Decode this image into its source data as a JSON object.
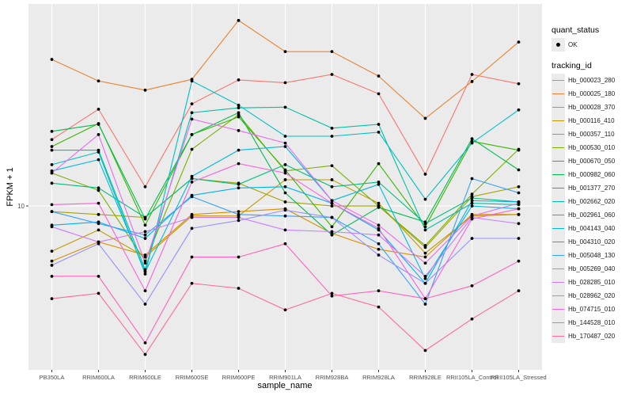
{
  "chart_data": {
    "type": "line",
    "title": "",
    "xlabel": "sample_name",
    "ylabel": "FPKM + 1",
    "y_scale": "log10",
    "ylim": [
      3.04,
      43.4
    ],
    "y_ticks": [
      10
    ],
    "y_tick_labels": [
      "10"
    ],
    "grid": true,
    "legend_position": "right",
    "categories": [
      "PB350LA",
      "RRIM600LA",
      "RRIM600LE",
      "RRIM600SE",
      "RRIM600PE",
      "RRIM901LA",
      "RRIM928BA",
      "RRIM928LA",
      "RRIM928LE",
      "RRII105LA_Control",
      "RRII105LA_Stressed"
    ],
    "quant_status_legend": {
      "title": "quant_status",
      "entries": [
        "OK"
      ]
    },
    "tracking_legend_title": "tracking_id",
    "series": [
      {
        "name": "Hb_000023_280",
        "color": "#F8766D",
        "values": [
          16.2,
          20.2,
          11.5,
          21.0,
          25.0,
          24.5,
          26.0,
          22.6,
          12.6,
          26.0,
          24.3
        ]
      },
      {
        "name": "Hb_000025_180",
        "color": "#EA8331",
        "values": [
          29.0,
          24.8,
          23.2,
          25.1,
          38.5,
          30.7,
          30.7,
          25.7,
          18.9,
          24.7,
          32.9
        ]
      },
      {
        "name": "Hb_000028_370",
        "color": "#D89000",
        "values": [
          6.7,
          7.7,
          7.0,
          9.4,
          9.6,
          9.8,
          8.2,
          7.3,
          6.9,
          9.4,
          9.4
        ]
      },
      {
        "name": "Hb_000116_410",
        "color": "#C09B00",
        "values": [
          7.2,
          8.4,
          6.9,
          9.3,
          9.3,
          12.1,
          12.1,
          10.2,
          7.1,
          9.3,
          9.4
        ]
      },
      {
        "name": "Hb_000357_110",
        "color": "#A3A500",
        "values": [
          9.6,
          9.4,
          9.2,
          12.2,
          11.8,
          10.3,
          10.0,
          10.0,
          7.4,
          10.7,
          11.5
        ]
      },
      {
        "name": "Hb_000530_010",
        "color": "#7CAE00",
        "values": [
          12.7,
          11.2,
          6.7,
          15.1,
          19.4,
          12.9,
          13.4,
          10.0,
          7.5,
          10.9,
          15.1
        ]
      },
      {
        "name": "Hb_000670_050",
        "color": "#39B600",
        "values": [
          15.4,
          18.2,
          8.7,
          16.8,
          19.1,
          13.0,
          8.6,
          13.6,
          8.6,
          16.0,
          15.0
        ]
      },
      {
        "name": "Hb_000982_060",
        "color": "#00BB4E",
        "values": [
          17.2,
          18.1,
          9.1,
          16.8,
          19.7,
          11.0,
          8.1,
          9.9,
          8.9,
          16.3,
          13.0
        ]
      },
      {
        "name": "Hb_001377_270",
        "color": "#00BF7D",
        "values": [
          11.8,
          11.4,
          9.2,
          12.2,
          11.7,
          13.5,
          11.5,
          11.9,
          8.8,
          10.6,
          10.3
        ]
      },
      {
        "name": "Hb_002662_020",
        "color": "#00C1A3",
        "values": [
          15.0,
          15.0,
          6.3,
          19.7,
          20.4,
          20.5,
          17.6,
          18.1,
          8.4,
          10.2,
          10.1
        ]
      },
      {
        "name": "Hb_002961_060",
        "color": "#00BFC4",
        "values": [
          13.5,
          14.8,
          6.1,
          24.8,
          20.8,
          16.6,
          16.6,
          17.1,
          10.5,
          15.8,
          20.1
        ]
      },
      {
        "name": "Hb_004143_040",
        "color": "#00BAE0",
        "values": [
          12.9,
          14.0,
          6.2,
          12.4,
          15.0,
          15.4,
          10.4,
          11.7,
          5.9,
          10.0,
          9.8
        ]
      },
      {
        "name": "Hb_004310_020",
        "color": "#00B0F6",
        "values": [
          8.7,
          8.9,
          7.9,
          10.8,
          11.4,
          11.5,
          10.2,
          8.4,
          5.7,
          10.4,
          10.3
        ]
      },
      {
        "name": "Hb_005048_130",
        "color": "#35A2FF",
        "values": [
          9.6,
          8.8,
          8.1,
          10.7,
          9.4,
          9.3,
          9.2,
          7.6,
          4.9,
          12.2,
          11.0
        ]
      },
      {
        "name": "Hb_005269_040",
        "color": "#9590FF",
        "values": [
          6.5,
          7.6,
          4.9,
          8.5,
          9.0,
          9.7,
          9.2,
          7.0,
          5.7,
          7.9,
          7.9
        ]
      },
      {
        "name": "Hb_028285_010",
        "color": "#C77CFF",
        "values": [
          8.6,
          7.7,
          8.3,
          9.2,
          9.2,
          8.4,
          8.3,
          8.1,
          6.0,
          9.2,
          8.8
        ]
      },
      {
        "name": "Hb_028962_020",
        "color": "#E76BF3",
        "values": [
          12.7,
          16.8,
          6.6,
          18.8,
          17.3,
          15.8,
          10.4,
          8.7,
          6.6,
          9.3,
          10.2
        ]
      },
      {
        "name": "Hb_074715_010",
        "color": "#FA62DB",
        "values": [
          10.1,
          10.2,
          5.4,
          11.9,
          13.6,
          12.7,
          10.2,
          8.5,
          5.1,
          9.1,
          9.8
        ]
      },
      {
        "name": "Hb_144528_010",
        "color": "#FF62BC",
        "values": [
          6.0,
          6.0,
          3.7,
          6.9,
          6.9,
          7.6,
          5.2,
          5.4,
          5.1,
          5.6,
          6.7
        ]
      },
      {
        "name": "Hb_170487_020",
        "color": "#FF6A98",
        "values": [
          5.1,
          5.3,
          3.4,
          5.7,
          5.5,
          4.7,
          5.3,
          4.8,
          3.5,
          4.4,
          5.4
        ]
      }
    ]
  }
}
